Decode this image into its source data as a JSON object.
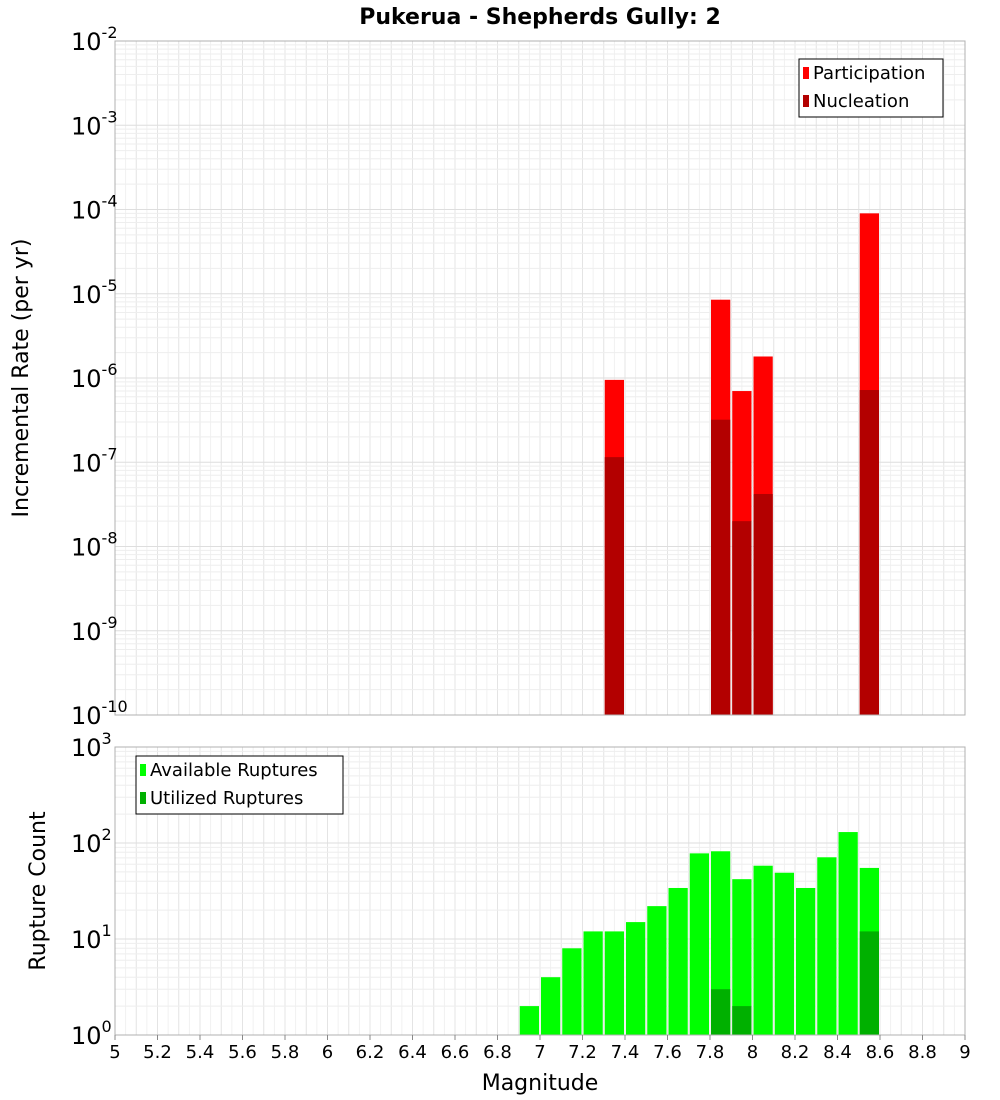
{
  "chart_data": [
    {
      "type": "bar",
      "title": "Pukerua - Shepherds Gully: 2",
      "xlabel": "",
      "ylabel": "Incremental Rate (per yr)",
      "yscale": "log",
      "ylim_exponents": [
        -10,
        -2
      ],
      "xlim": [
        5,
        9
      ],
      "bar_width": 0.1,
      "grid": true,
      "legend_position": "top-right",
      "series": [
        {
          "name": "Participation",
          "color": "#ff0000",
          "points": [
            {
              "x": 7.35,
              "y": 9.5e-07
            },
            {
              "x": 7.85,
              "y": 8.5e-06
            },
            {
              "x": 7.95,
              "y": 7e-07
            },
            {
              "x": 8.05,
              "y": 1.8e-06
            },
            {
              "x": 8.55,
              "y": 9e-05
            }
          ]
        },
        {
          "name": "Nucleation",
          "color": "#b30000",
          "points": [
            {
              "x": 7.35,
              "y": 1.15e-07
            },
            {
              "x": 7.85,
              "y": 3.2e-07
            },
            {
              "x": 7.95,
              "y": 2e-08
            },
            {
              "x": 8.05,
              "y": 4.2e-08
            },
            {
              "x": 8.55,
              "y": 7.2e-07
            }
          ]
        }
      ]
    },
    {
      "type": "bar",
      "title": "",
      "xlabel": "Magnitude",
      "ylabel": "Rupture Count",
      "yscale": "log",
      "ylim_exponents": [
        0,
        3
      ],
      "xlim": [
        5,
        9
      ],
      "bar_width": 0.1,
      "grid": true,
      "legend_position": "top-left",
      "x_ticks": [
        "5",
        "5.2",
        "5.4",
        "5.6",
        "5.8",
        "6",
        "6.2",
        "6.4",
        "6.6",
        "6.8",
        "7",
        "7.2",
        "7.4",
        "7.6",
        "7.8",
        "8",
        "8.2",
        "8.4",
        "8.6",
        "8.8",
        "9"
      ],
      "series": [
        {
          "name": "Available Ruptures",
          "color": "#00ff00",
          "points": [
            {
              "x": 6.45,
              "y": 1
            },
            {
              "x": 6.75,
              "y": 1
            },
            {
              "x": 6.85,
              "y": 1
            },
            {
              "x": 6.95,
              "y": 2
            },
            {
              "x": 7.05,
              "y": 4
            },
            {
              "x": 7.15,
              "y": 8
            },
            {
              "x": 7.25,
              "y": 12
            },
            {
              "x": 7.35,
              "y": 12
            },
            {
              "x": 7.45,
              "y": 15
            },
            {
              "x": 7.55,
              "y": 22
            },
            {
              "x": 7.65,
              "y": 34
            },
            {
              "x": 7.75,
              "y": 78
            },
            {
              "x": 7.85,
              "y": 82
            },
            {
              "x": 7.95,
              "y": 42
            },
            {
              "x": 8.05,
              "y": 58
            },
            {
              "x": 8.15,
              "y": 49
            },
            {
              "x": 8.25,
              "y": 34
            },
            {
              "x": 8.35,
              "y": 71
            },
            {
              "x": 8.45,
              "y": 130
            },
            {
              "x": 8.55,
              "y": 55
            }
          ]
        },
        {
          "name": "Utilized Ruptures",
          "color": "#00b000",
          "points": [
            {
              "x": 7.35,
              "y": 1
            },
            {
              "x": 7.85,
              "y": 3
            },
            {
              "x": 7.95,
              "y": 2
            },
            {
              "x": 8.05,
              "y": 1
            },
            {
              "x": 8.55,
              "y": 12
            }
          ]
        }
      ]
    }
  ]
}
